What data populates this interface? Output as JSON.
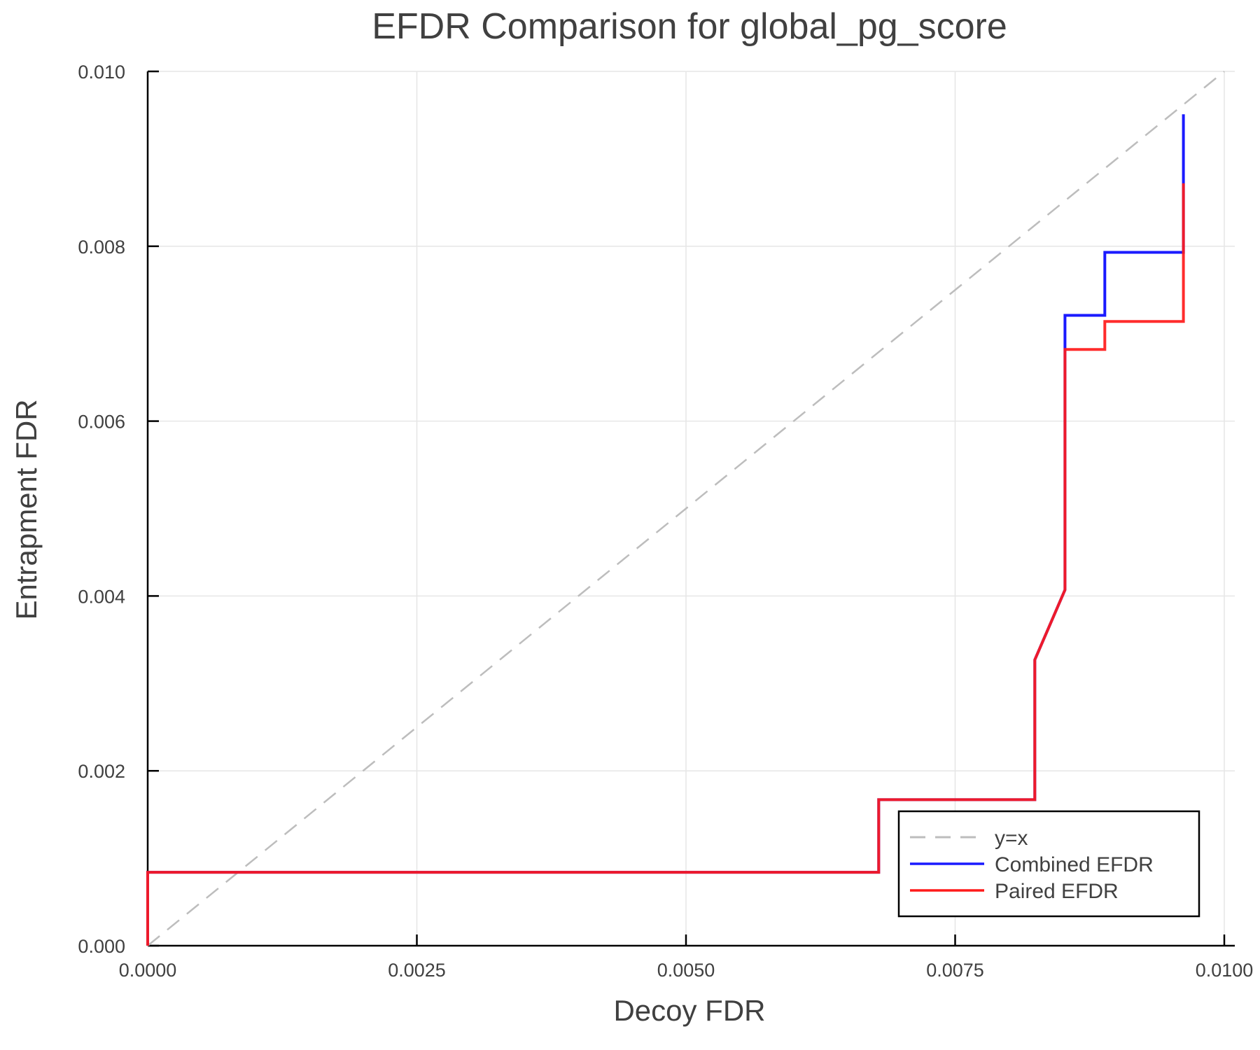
{
  "chart_data": {
    "type": "line",
    "title": "EFDR Comparison for global_pg_score",
    "xlabel": "Decoy FDR",
    "ylabel": "Entrapment FDR",
    "xlim": [
      0.0,
      0.01
    ],
    "ylim": [
      0.0,
      0.01
    ],
    "grid": true,
    "legend_position": "bottom-right",
    "x_ticks": [
      0.0,
      0.0025,
      0.005,
      0.0075,
      0.01
    ],
    "x_tick_labels": [
      "0.0000",
      "0.0025",
      "0.0050",
      "0.0075",
      "0.0100"
    ],
    "y_ticks": [
      0.0,
      0.002,
      0.004,
      0.006,
      0.008,
      0.01
    ],
    "y_tick_labels": [
      "0.000",
      "0.002",
      "0.004",
      "0.006",
      "0.008",
      "0.010"
    ],
    "series": [
      {
        "name": "y=x",
        "color": "#bdbdbd",
        "style": "dashed",
        "x": [
          0.0,
          0.01
        ],
        "y": [
          0.0,
          0.01
        ]
      },
      {
        "name": "Combined EFDR",
        "color": "#1a1aff",
        "style": "solid",
        "x": [
          0.0,
          0.0,
          0.00679,
          0.00679,
          0.00824,
          0.00824,
          0.00852,
          0.00852,
          0.00852,
          0.00889,
          0.00889,
          0.00962,
          0.00962
        ],
        "y": [
          0.0,
          0.00084,
          0.00084,
          0.00167,
          0.00167,
          0.00327,
          0.00407,
          0.00682,
          0.00721,
          0.00721,
          0.00793,
          0.00793,
          0.00951
        ]
      },
      {
        "name": "Paired EFDR",
        "color": "#ff1a1a",
        "style": "solid",
        "x": [
          0.0,
          0.0,
          0.00679,
          0.00679,
          0.00824,
          0.00824,
          0.00852,
          0.00852,
          0.00889,
          0.00889,
          0.00962,
          0.00962
        ],
        "y": [
          0.0,
          0.00084,
          0.00084,
          0.00167,
          0.00167,
          0.00327,
          0.00407,
          0.00682,
          0.00682,
          0.00714,
          0.00714,
          0.00872
        ]
      }
    ]
  },
  "legend": {
    "items": [
      {
        "label": "y=x",
        "color": "#bdbdbd",
        "style": "dashed"
      },
      {
        "label": "Combined EFDR",
        "color": "#1a1aff",
        "style": "solid"
      },
      {
        "label": "Paired EFDR",
        "color": "#ff1a1a",
        "style": "solid"
      }
    ]
  }
}
